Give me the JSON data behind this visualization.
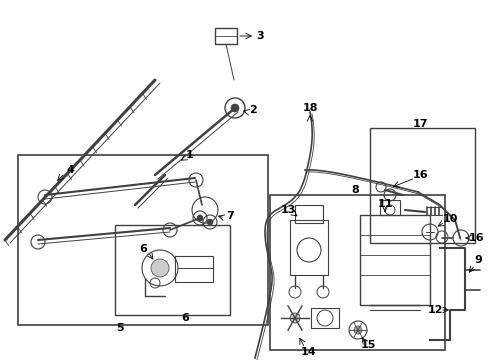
{
  "bg_color": "#ffffff",
  "lc": "#404040",
  "figsize": [
    4.89,
    3.6
  ],
  "dpi": 100,
  "components": {
    "label_fontsize": 8,
    "arrow_lw": 0.6
  }
}
